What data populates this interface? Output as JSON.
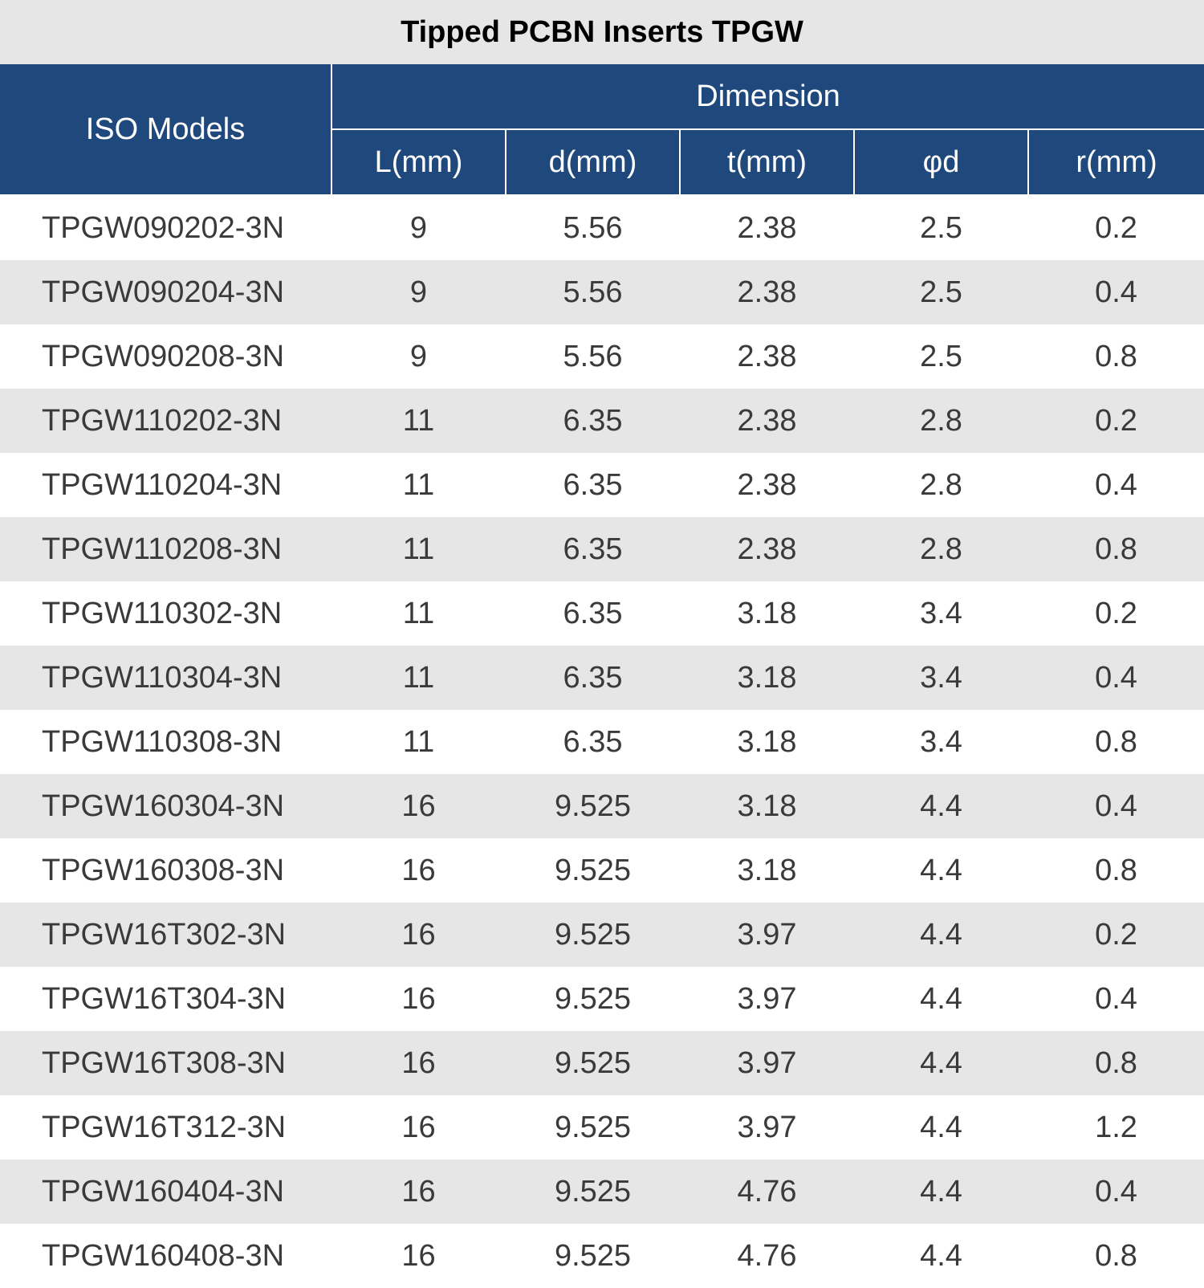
{
  "title": "Tipped PCBN Inserts TPGW",
  "header": {
    "model": "ISO Models",
    "dimension": "Dimension",
    "columns": [
      "L(mm)",
      "d(mm)",
      "t(mm)",
      "φd",
      "r(mm)"
    ]
  },
  "rows": [
    {
      "model": "TPGW090202-3N",
      "L": "9",
      "d": "5.56",
      "t": "2.38",
      "phid": "2.5",
      "r": "0.2"
    },
    {
      "model": "TPGW090204-3N",
      "L": "9",
      "d": "5.56",
      "t": "2.38",
      "phid": "2.5",
      "r": "0.4"
    },
    {
      "model": "TPGW090208-3N",
      "L": "9",
      "d": "5.56",
      "t": "2.38",
      "phid": "2.5",
      "r": "0.8"
    },
    {
      "model": "TPGW110202-3N",
      "L": "11",
      "d": "6.35",
      "t": "2.38",
      "phid": "2.8",
      "r": "0.2"
    },
    {
      "model": "TPGW110204-3N",
      "L": "11",
      "d": "6.35",
      "t": "2.38",
      "phid": "2.8",
      "r": "0.4"
    },
    {
      "model": "TPGW110208-3N",
      "L": "11",
      "d": "6.35",
      "t": "2.38",
      "phid": "2.8",
      "r": "0.8"
    },
    {
      "model": "TPGW110302-3N",
      "L": "11",
      "d": "6.35",
      "t": "3.18",
      "phid": "3.4",
      "r": "0.2"
    },
    {
      "model": "TPGW110304-3N",
      "L": "11",
      "d": "6.35",
      "t": "3.18",
      "phid": "3.4",
      "r": "0.4"
    },
    {
      "model": "TPGW110308-3N",
      "L": "11",
      "d": "6.35",
      "t": "3.18",
      "phid": "3.4",
      "r": "0.8"
    },
    {
      "model": "TPGW160304-3N",
      "L": "16",
      "d": "9.525",
      "t": "3.18",
      "phid": "4.4",
      "r": "0.4"
    },
    {
      "model": "TPGW160308-3N",
      "L": "16",
      "d": "9.525",
      "t": "3.18",
      "phid": "4.4",
      "r": "0.8"
    },
    {
      "model": "TPGW16T302-3N",
      "L": "16",
      "d": "9.525",
      "t": "3.97",
      "phid": "4.4",
      "r": "0.2"
    },
    {
      "model": "TPGW16T304-3N",
      "L": "16",
      "d": "9.525",
      "t": "3.97",
      "phid": "4.4",
      "r": "0.4"
    },
    {
      "model": "TPGW16T308-3N",
      "L": "16",
      "d": "9.525",
      "t": "3.97",
      "phid": "4.4",
      "r": "0.8"
    },
    {
      "model": "TPGW16T312-3N",
      "L": "16",
      "d": "9.525",
      "t": "3.97",
      "phid": "4.4",
      "r": "1.2"
    },
    {
      "model": "TPGW160404-3N",
      "L": "16",
      "d": "9.525",
      "t": "4.76",
      "phid": "4.4",
      "r": "0.4"
    },
    {
      "model": "TPGW160408-3N",
      "L": "16",
      "d": "9.525",
      "t": "4.76",
      "phid": "4.4",
      "r": "0.8"
    }
  ]
}
